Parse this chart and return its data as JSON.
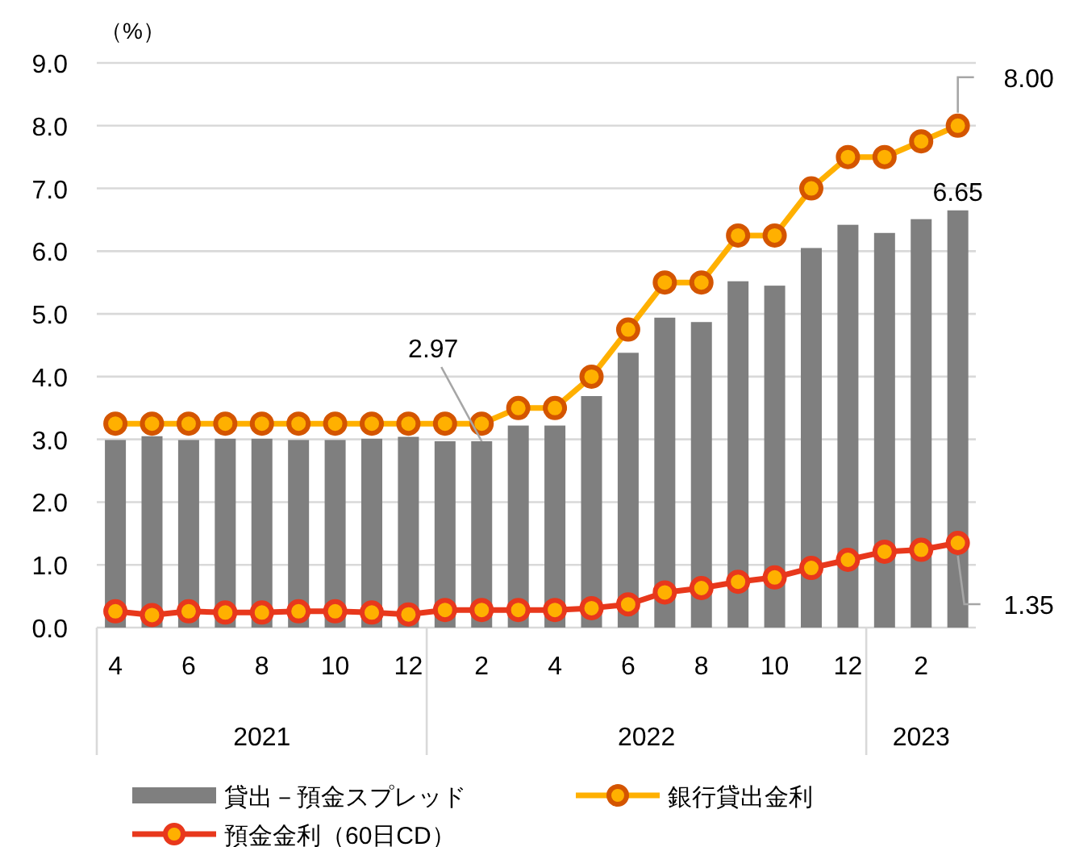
{
  "chart_data": {
    "type": "bar",
    "ylabel": "（%）",
    "x": [
      "2021-04",
      "2021-05",
      "2021-06",
      "2021-07",
      "2021-08",
      "2021-09",
      "2021-10",
      "2021-11",
      "2021-12",
      "2022-01",
      "2022-02",
      "2022-03",
      "2022-04",
      "2022-05",
      "2022-06",
      "2022-07",
      "2022-08",
      "2022-09",
      "2022-10",
      "2022-11",
      "2022-12",
      "2023-01",
      "2023-02",
      "2023-03"
    ],
    "xlim": [
      "2021-03-16",
      "2023-03-16"
    ],
    "xticks": [
      {
        "value": "2021-04",
        "label": "4"
      },
      {
        "value": "2021-06",
        "label": "6"
      },
      {
        "value": "2021-08",
        "label": "8"
      },
      {
        "value": "2021-10",
        "label": "10"
      },
      {
        "value": "2021-12",
        "label": "12"
      },
      {
        "value": "2022-02",
        "label": "2"
      },
      {
        "value": "2022-04",
        "label": "4"
      },
      {
        "value": "2022-06",
        "label": "6"
      },
      {
        "value": "2022-08",
        "label": "8"
      },
      {
        "value": "2022-10",
        "label": "10"
      },
      {
        "value": "2022-12",
        "label": "12"
      },
      {
        "value": "2023-02",
        "label": "2"
      }
    ],
    "ylim": [
      0,
      9
    ],
    "yticks": [
      {
        "value": 0,
        "label": "0.0"
      },
      {
        "value": 1,
        "label": "1.0"
      },
      {
        "value": 2,
        "label": "2.0"
      },
      {
        "value": 3,
        "label": "3.0"
      },
      {
        "value": 4,
        "label": "4.0"
      },
      {
        "value": 5,
        "label": "5.0"
      },
      {
        "value": 6,
        "label": "6.0"
      },
      {
        "value": 7,
        "label": "7.0"
      },
      {
        "value": 8,
        "label": "8.0"
      },
      {
        "value": 9,
        "label": "9.0"
      }
    ],
    "grid": "y",
    "legend": "bottom",
    "marker": "circle",
    "series": [
      {
        "name": "貸出－預金スプレッド",
        "color": "#7f7f7f",
        "values": [
          2.99,
          3.05,
          2.99,
          3.01,
          3.01,
          2.99,
          2.99,
          3.01,
          3.04,
          2.97,
          2.97,
          3.22,
          3.22,
          3.69,
          4.38,
          4.94,
          4.87,
          5.52,
          5.45,
          6.05,
          6.42,
          6.29,
          6.51,
          6.65
        ],
        "value_labels": [
          null,
          null,
          null,
          null,
          null,
          null,
          null,
          null,
          null,
          null,
          "2.97",
          null,
          null,
          null,
          null,
          null,
          null,
          null,
          null,
          null,
          null,
          null,
          null,
          "6.65"
        ]
      },
      {
        "name": "銀行貸出金利",
        "type": "line",
        "color": "#ffb000",
        "values": [
          3.25,
          3.25,
          3.25,
          3.25,
          3.25,
          3.25,
          3.25,
          3.25,
          3.25,
          3.25,
          3.25,
          3.5,
          3.5,
          4.0,
          4.75,
          5.5,
          5.5,
          6.25,
          6.25,
          7.0,
          7.5,
          7.5,
          7.75,
          8.0
        ],
        "value_labels": [
          null,
          null,
          null,
          null,
          null,
          null,
          null,
          null,
          null,
          null,
          null,
          null,
          null,
          null,
          null,
          null,
          null,
          null,
          null,
          null,
          null,
          null,
          null,
          "8.00"
        ]
      },
      {
        "name": "預金金利（60日CD）",
        "type": "line",
        "color": "#e8381c",
        "values": [
          0.26,
          0.2,
          0.26,
          0.24,
          0.24,
          0.26,
          0.26,
          0.24,
          0.21,
          0.28,
          0.28,
          0.28,
          0.28,
          0.31,
          0.37,
          0.56,
          0.63,
          0.73,
          0.8,
          0.95,
          1.08,
          1.21,
          1.24,
          1.35
        ],
        "value_labels": [
          null,
          null,
          null,
          null,
          null,
          null,
          null,
          null,
          null,
          null,
          null,
          null,
          null,
          null,
          null,
          null,
          null,
          null,
          null,
          null,
          null,
          null,
          null,
          "1.35"
        ]
      }
    ],
    "annotations": [
      "2021",
      "2022",
      "2023"
    ]
  }
}
